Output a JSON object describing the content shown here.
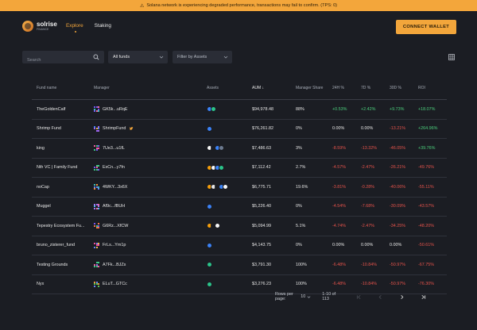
{
  "banner": {
    "text": "Solana network is experiencing degraded performance, transactions may fail to confirm. (TPS: 0)"
  },
  "brand": {
    "name": "solrise",
    "sub": "FINANCE"
  },
  "nav": {
    "explore": "Explore",
    "staking": "Staking"
  },
  "connect_label": "CONNECT WALLET",
  "filters": {
    "search_placeholder": "Search",
    "funds_select": "All funds",
    "assets_select": "Filter by Assets"
  },
  "table": {
    "headers": {
      "name": "Fund name",
      "manager": "Manager",
      "assets": "Assets",
      "aum": "AUM",
      "share": "Manager Share",
      "h24": "24H %",
      "d7": "7D %",
      "d30": "30D %",
      "roi": "ROI"
    },
    "rows": [
      {
        "name": "TheGoldenCalf",
        "manager": "GK5k...uRqE",
        "aum": "$94,978.48",
        "share": "88%",
        "h24": "+0.53%",
        "d7": "+2.42%",
        "d30": "+9.73%",
        "roi": "+18.07%",
        "s": [
          "pos",
          "pos",
          "pos",
          "pos"
        ]
      },
      {
        "name": "Shrimp Fund",
        "manager": "ShrimpFund",
        "aum": "$76,261.82",
        "share": "0%",
        "h24": "0.00%",
        "d7": "0.00%",
        "d30": "-13.21%",
        "roi": "+264.96%",
        "s": [
          "neu",
          "neu",
          "neg",
          "pos"
        ]
      },
      {
        "name": "king",
        "manager": "7Ue3...u1fL",
        "aum": "$7,486.63",
        "share": "3%",
        "h24": "-8.59%",
        "d7": "-13.32%",
        "d30": "-46.05%",
        "roi": "+39.76%",
        "s": [
          "neg",
          "neg",
          "neg",
          "pos"
        ]
      },
      {
        "name": "Nth VC | Family Fund",
        "manager": "ExCn...y7fn",
        "aum": "$7,112.42",
        "share": "2.7%",
        "h24": "-4.57%",
        "d7": "-2.47%",
        "d30": "-26.21%",
        "roi": "-49.76%",
        "s": [
          "neg",
          "neg",
          "neg",
          "neg"
        ]
      },
      {
        "name": "noCap",
        "manager": "4WKY...3x6X",
        "aum": "$6,775.71",
        "share": "19.6%",
        "h24": "-3.81%",
        "d7": "-0.28%",
        "d30": "-40.06%",
        "roi": "-55.11%",
        "s": [
          "neg",
          "neg",
          "neg",
          "neg"
        ]
      },
      {
        "name": "Muggel",
        "manager": "Af9c...fBUH",
        "aum": "$5,226.40",
        "share": "0%",
        "h24": "-4.54%",
        "d7": "-7.68%",
        "d30": "-30.09%",
        "roi": "-43.57%",
        "s": [
          "neg",
          "neg",
          "neg",
          "neg"
        ]
      },
      {
        "name": "Tepestry Ecosystem Fu...",
        "manager": "G6Rz...XfCW",
        "aum": "$5,094.99",
        "share": "5.1%",
        "h24": "-4.74%",
        "d7": "-2.47%",
        "d30": "-34.25%",
        "roi": "-48.20%",
        "s": [
          "neg",
          "neg",
          "neg",
          "neg"
        ]
      },
      {
        "name": "bruno_zisterer_fund",
        "manager": "FrLs...Ym1p",
        "aum": "$4,143.75",
        "share": "0%",
        "h24": "0.00%",
        "d7": "0.00%",
        "d30": "0.00%",
        "roi": "-50.61%",
        "s": [
          "neu",
          "neu",
          "neu",
          "neg"
        ]
      },
      {
        "name": "Testing Grounds",
        "manager": "A7Fk...BJZs",
        "aum": "$3,791.30",
        "share": "100%",
        "h24": "-6.48%",
        "d7": "-10.84%",
        "d30": "-50.97%",
        "roi": "-67.75%",
        "s": [
          "neg",
          "neg",
          "neg",
          "neg"
        ]
      },
      {
        "name": "Nyx",
        "manager": "ELuT...GTCc",
        "aum": "$3,276.23",
        "share": "100%",
        "h24": "-6.48%",
        "d7": "-10.84%",
        "d30": "-50.97%",
        "roi": "-76.30%",
        "s": [
          "neg",
          "neg",
          "neg",
          "neg"
        ]
      }
    ]
  },
  "pager": {
    "rows_label": "Rows per page:",
    "rows_value": "10",
    "range": "1-10 of 113"
  },
  "colors": {
    "accent": "#f3a63b",
    "positive": "#4cd07d",
    "negative": "#e5534b",
    "background": "#1b1d23"
  }
}
